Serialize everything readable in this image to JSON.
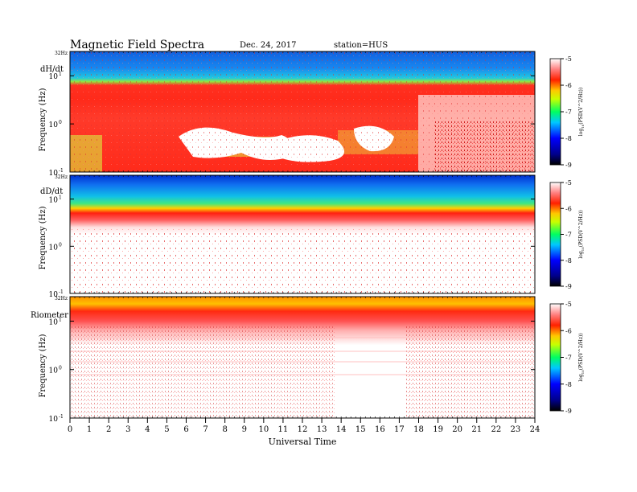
{
  "header": {
    "title": "Magnetic  Field  Spectra",
    "date": "Dec. 24, 2017",
    "station": "station=HUS"
  },
  "chart_data": {
    "type": "heatmap",
    "x": {
      "label": "Universal Time",
      "range": [
        0,
        24
      ],
      "ticks": [
        "0",
        "1",
        "2",
        "3",
        "4",
        "5",
        "6",
        "7",
        "8",
        "9",
        "10",
        "11",
        "12",
        "13",
        "14",
        "15",
        "16",
        "17",
        "18",
        "19",
        "20",
        "21",
        "22",
        "23",
        "24"
      ]
    },
    "panels": [
      {
        "name": "dH/dt",
        "ylabel": "Frequency  (Hz)",
        "top_label": "32Hz",
        "yticks": [
          {
            "base": "10",
            "exp": "1",
            "value": 10
          },
          {
            "base": "10",
            "exp": "0",
            "value": 1
          },
          {
            "base": "10",
            "exp": "-1",
            "value": 0.1
          }
        ],
        "ylim": [
          0.1,
          32
        ],
        "yscale": "log"
      },
      {
        "name": "dD/dt",
        "ylabel": "Frequency  (Hz)",
        "top_label": "32Hz",
        "yticks": [
          {
            "base": "10",
            "exp": "1",
            "value": 10
          },
          {
            "base": "10",
            "exp": "0",
            "value": 1
          },
          {
            "base": "10",
            "exp": "-1",
            "value": 0.1
          }
        ],
        "ylim": [
          0.1,
          32
        ],
        "yscale": "log"
      },
      {
        "name": "Riometer",
        "ylabel": "Frequency  (Hz)",
        "top_label": "32Hz",
        "yticks": [
          {
            "base": "10",
            "exp": "1",
            "value": 10
          },
          {
            "base": "10",
            "exp": "0",
            "value": 1
          },
          {
            "base": "10",
            "exp": "-1",
            "value": 0.1
          }
        ],
        "ylim": [
          0.1,
          32
        ],
        "yscale": "log"
      }
    ],
    "colorbar": {
      "label": "log(PSD(V^2/Hz))",
      "label_main": "log",
      "label_sub": "10",
      "label_rest": "(PSD(V^2/Hz))",
      "range": [
        -9,
        -5
      ],
      "ticks": [
        "-5",
        "-6",
        "-7",
        "-8",
        "-9"
      ],
      "colors": [
        "#000000",
        "#0000ff",
        "#00c0ff",
        "#00ff00",
        "#ffff00",
        "#ff0000",
        "#ffffff"
      ]
    }
  }
}
